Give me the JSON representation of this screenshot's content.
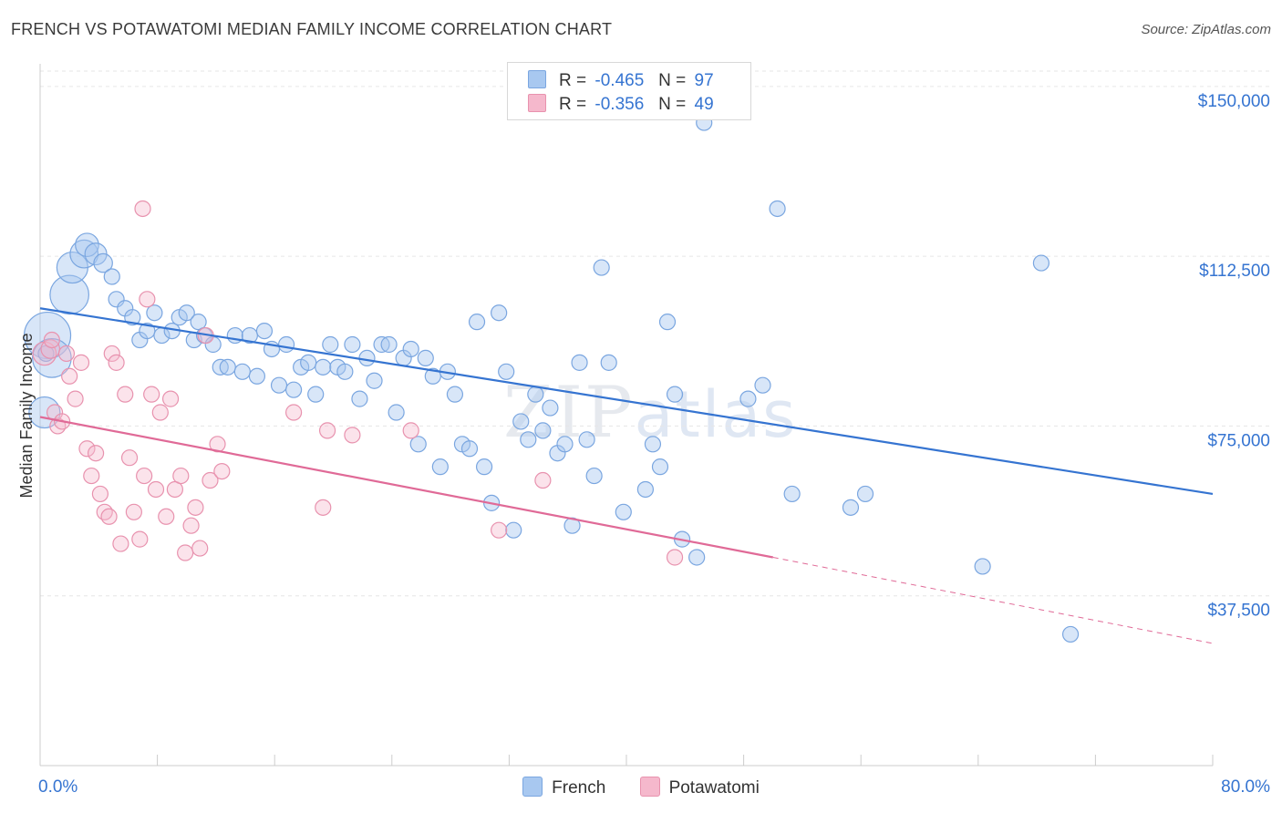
{
  "header": {
    "title": "FRENCH VS POTAWATOMI MEDIAN FAMILY INCOME CORRELATION CHART",
    "source": "Source: ZipAtlas.com"
  },
  "watermark": {
    "zip": "ZIP",
    "atlas": "atlas"
  },
  "legend": {
    "rows": [
      {
        "r_label": "R =",
        "r_value": "-0.465",
        "n_label": "N =",
        "n_value": "97",
        "color": "#a8c8f0",
        "stroke": "#7aa6e0"
      },
      {
        "r_label": "R =",
        "r_value": "-0.356",
        "n_label": "N =",
        "n_value": "49",
        "color": "#f5b8cc",
        "stroke": "#e892ae"
      }
    ]
  },
  "bottom_legend": [
    {
      "label": "French",
      "color": "#a8c8f0",
      "stroke": "#7aa6e0"
    },
    {
      "label": "Potawatomi",
      "color": "#f5b8cc",
      "stroke": "#e892ae"
    }
  ],
  "chart_data": {
    "type": "scatter",
    "xlabel": "",
    "ylabel": "Median Family Income",
    "xlim": [
      0,
      80
    ],
    "ylim": [
      0,
      155000
    ],
    "x_tick_labels": [
      "0.0%",
      "80.0%"
    ],
    "y_ticks": [
      37500,
      75000,
      112500,
      150000
    ],
    "y_tick_labels": [
      "$37,500",
      "$75,000",
      "$112,500",
      "$150,000"
    ],
    "grid": true,
    "colors": {
      "french": "#3574d1",
      "potawatomi": "#e06a97",
      "tick_text": "#3574d1"
    },
    "series": [
      {
        "name": "French",
        "trend": {
          "x": [
            0,
            80
          ],
          "y": [
            101000,
            60000
          ]
        },
        "points": [
          [
            0.5,
            95000,
            3
          ],
          [
            0.8,
            90000,
            2.5
          ],
          [
            0.3,
            78000,
            2
          ],
          [
            2,
            104000,
            2.5
          ],
          [
            2.2,
            110000,
            2
          ],
          [
            3,
            113000,
            1.8
          ],
          [
            3.2,
            115000,
            1.5
          ],
          [
            3.8,
            113000,
            1.4
          ],
          [
            4.3,
            111000,
            1.2
          ],
          [
            4.9,
            108000,
            1
          ],
          [
            5.2,
            103000,
            1
          ],
          [
            5.8,
            101000,
            1
          ],
          [
            6.3,
            99000,
            1
          ],
          [
            6.8,
            94000,
            1
          ],
          [
            7.3,
            96000,
            1
          ],
          [
            7.8,
            100000,
            1
          ],
          [
            8.3,
            95000,
            1
          ],
          [
            9,
            96000,
            1
          ],
          [
            9.5,
            99000,
            1
          ],
          [
            10,
            100000,
            1
          ],
          [
            10.5,
            94000,
            1
          ],
          [
            10.8,
            98000,
            1
          ],
          [
            11.2,
            95000,
            1
          ],
          [
            11.8,
            93000,
            1
          ],
          [
            12.3,
            88000,
            1
          ],
          [
            12.8,
            88000,
            1
          ],
          [
            13.3,
            95000,
            1
          ],
          [
            13.8,
            87000,
            1
          ],
          [
            14.3,
            95000,
            1
          ],
          [
            14.8,
            86000,
            1
          ],
          [
            15.3,
            96000,
            1
          ],
          [
            15.8,
            92000,
            1
          ],
          [
            16.3,
            84000,
            1
          ],
          [
            16.8,
            93000,
            1
          ],
          [
            17.3,
            83000,
            1
          ],
          [
            17.8,
            88000,
            1
          ],
          [
            18.3,
            89000,
            1
          ],
          [
            18.8,
            82000,
            1
          ],
          [
            19.3,
            88000,
            1
          ],
          [
            19.8,
            93000,
            1
          ],
          [
            20.3,
            88000,
            1
          ],
          [
            20.8,
            87000,
            1
          ],
          [
            21.3,
            93000,
            1
          ],
          [
            21.8,
            81000,
            1
          ],
          [
            22.3,
            90000,
            1
          ],
          [
            22.8,
            85000,
            1
          ],
          [
            23.3,
            93000,
            1
          ],
          [
            23.8,
            93000,
            1
          ],
          [
            24.3,
            78000,
            1
          ],
          [
            24.8,
            90000,
            1
          ],
          [
            25.3,
            92000,
            1
          ],
          [
            25.8,
            71000,
            1
          ],
          [
            26.3,
            90000,
            1
          ],
          [
            26.8,
            86000,
            1
          ],
          [
            27.3,
            66000,
            1
          ],
          [
            27.8,
            87000,
            1
          ],
          [
            28.3,
            82000,
            1
          ],
          [
            28.8,
            71000,
            1
          ],
          [
            29.3,
            70000,
            1
          ],
          [
            29.8,
            98000,
            1
          ],
          [
            30.3,
            66000,
            1
          ],
          [
            30.8,
            58000,
            1
          ],
          [
            31.3,
            100000,
            1
          ],
          [
            31.8,
            87000,
            1
          ],
          [
            32.3,
            52000,
            1
          ],
          [
            32.8,
            76000,
            1
          ],
          [
            33.3,
            72000,
            1
          ],
          [
            33.8,
            82000,
            1
          ],
          [
            34.3,
            74000,
            1
          ],
          [
            34.8,
            79000,
            1
          ],
          [
            35.3,
            69000,
            1
          ],
          [
            35.8,
            71000,
            1
          ],
          [
            36.3,
            53000,
            1
          ],
          [
            36.8,
            89000,
            1
          ],
          [
            37.3,
            72000,
            1
          ],
          [
            37.8,
            64000,
            1
          ],
          [
            38.3,
            110000,
            1
          ],
          [
            38.8,
            89000,
            1
          ],
          [
            39.8,
            56000,
            1
          ],
          [
            41.3,
            61000,
            1
          ],
          [
            41.8,
            71000,
            1
          ],
          [
            42.3,
            66000,
            1
          ],
          [
            42.8,
            98000,
            1
          ],
          [
            43.3,
            82000,
            1
          ],
          [
            43.8,
            50000,
            1
          ],
          [
            44.8,
            46000,
            1
          ],
          [
            45.3,
            142000,
            1
          ],
          [
            48.3,
            81000,
            1
          ],
          [
            49.3,
            84000,
            1
          ],
          [
            50.3,
            123000,
            1
          ],
          [
            51.3,
            60000,
            1
          ],
          [
            55.3,
            57000,
            1
          ],
          [
            56.3,
            60000,
            1
          ],
          [
            64.3,
            44000,
            1
          ],
          [
            68.3,
            111000,
            1
          ],
          [
            70.3,
            29000,
            1
          ],
          [
            0.4,
            91000,
            1
          ]
        ]
      },
      {
        "name": "Potawatomi",
        "trend": {
          "x": [
            0,
            50
          ],
          "y": [
            77000,
            46000
          ]
        },
        "trend_dashed": {
          "x": [
            50,
            80
          ],
          "y": [
            46000,
            27000
          ]
        },
        "points": [
          [
            0.3,
            91000,
            1.5
          ],
          [
            0.7,
            92000,
            1.2
          ],
          [
            0.8,
            94000,
            1
          ],
          [
            1,
            78000,
            1
          ],
          [
            1.2,
            75000,
            1
          ],
          [
            1.5,
            76000,
            1
          ],
          [
            1.8,
            91000,
            1
          ],
          [
            2,
            86000,
            1
          ],
          [
            2.4,
            81000,
            1
          ],
          [
            2.8,
            89000,
            1
          ],
          [
            3.2,
            70000,
            1
          ],
          [
            3.5,
            64000,
            1
          ],
          [
            3.8,
            69000,
            1
          ],
          [
            4.1,
            60000,
            1
          ],
          [
            4.4,
            56000,
            1
          ],
          [
            4.7,
            55000,
            1
          ],
          [
            4.9,
            91000,
            1
          ],
          [
            5.2,
            89000,
            1
          ],
          [
            5.5,
            49000,
            1
          ],
          [
            5.8,
            82000,
            1
          ],
          [
            6.1,
            68000,
            1
          ],
          [
            6.4,
            56000,
            1
          ],
          [
            6.8,
            50000,
            1
          ],
          [
            7.1,
            64000,
            1
          ],
          [
            7.3,
            103000,
            1
          ],
          [
            7.6,
            82000,
            1
          ],
          [
            7.9,
            61000,
            1
          ],
          [
            8.2,
            78000,
            1
          ],
          [
            8.6,
            55000,
            1
          ],
          [
            8.9,
            81000,
            1
          ],
          [
            9.2,
            61000,
            1
          ],
          [
            9.6,
            64000,
            1
          ],
          [
            9.9,
            47000,
            1
          ],
          [
            10.3,
            53000,
            1
          ],
          [
            10.6,
            57000,
            1
          ],
          [
            10.9,
            48000,
            1
          ],
          [
            11.3,
            95000,
            1
          ],
          [
            11.6,
            63000,
            1
          ],
          [
            12.1,
            71000,
            1
          ],
          [
            12.4,
            65000,
            1
          ],
          [
            17.3,
            78000,
            1
          ],
          [
            19.3,
            57000,
            1
          ],
          [
            19.6,
            74000,
            1
          ],
          [
            21.3,
            73000,
            1
          ],
          [
            25.3,
            74000,
            1
          ],
          [
            31.3,
            52000,
            1
          ],
          [
            34.3,
            63000,
            1
          ],
          [
            43.3,
            46000,
            1
          ],
          [
            7,
            123000,
            1
          ]
        ]
      }
    ]
  }
}
